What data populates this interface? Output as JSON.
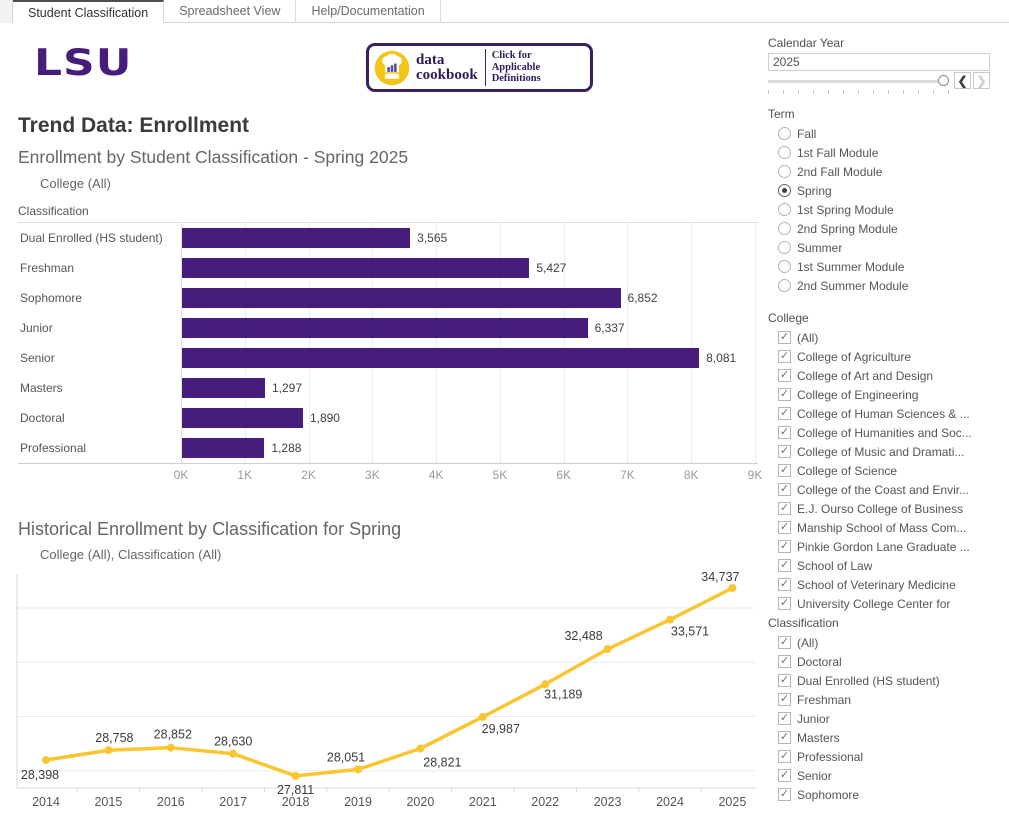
{
  "tabs": [
    {
      "label": "Student Classification",
      "active": true
    },
    {
      "label": "Spreadsheet View",
      "active": false
    },
    {
      "label": "Help/Documentation",
      "active": false
    }
  ],
  "logo": {
    "text": "LSU",
    "color": "#461d7c"
  },
  "cookbook": {
    "line1": "data",
    "line2": "cookbook",
    "caption_line1": "Click for Applicable",
    "caption_line2": "Definitions",
    "border_color": "#3a2060",
    "circle_color": "#f3c517"
  },
  "page_title": "Trend Data: Enrollment",
  "chart_data": [
    {
      "type": "bar",
      "title": "Enrollment by Student Classification - Spring 2025",
      "subtitle": "College (All)",
      "row_header": "Classification",
      "categories": [
        "Dual Enrolled (HS student)",
        "Freshman",
        "Sophomore",
        "Junior",
        "Senior",
        "Masters",
        "Doctoral",
        "Professional"
      ],
      "values": [
        3565,
        5427,
        6852,
        6337,
        8081,
        1297,
        1890,
        1288
      ],
      "value_labels": [
        "3,565",
        "5,427",
        "6,852",
        "6,337",
        "8,081",
        "1,297",
        "1,890",
        "1,288"
      ],
      "xlim": [
        0,
        9000
      ],
      "x_ticks": [
        "0K",
        "1K",
        "2K",
        "3K",
        "4K",
        "5K",
        "6K",
        "7K",
        "8K",
        "9K"
      ],
      "bar_color": "#461d7c",
      "grid": true,
      "legend": "none"
    },
    {
      "type": "line",
      "title": "Historical Enrollment by Classification for Spring",
      "subtitle": "College (All), Classification (All)",
      "x": [
        2014,
        2015,
        2016,
        2017,
        2018,
        2019,
        2020,
        2021,
        2022,
        2023,
        2024,
        2025
      ],
      "values": [
        28398,
        28758,
        28852,
        28630,
        27811,
        28051,
        28821,
        29987,
        31189,
        32488,
        33571,
        34737
      ],
      "value_labels": [
        "28,398",
        "28,758",
        "28,852",
        "28,630",
        "27,811",
        "28,051",
        "28,821",
        "29,987",
        "31,189",
        "32,488",
        "33,571",
        "34,737"
      ],
      "line_color": "#fac531",
      "ylim": [
        27600,
        35300
      ],
      "gridline_values": [
        28000,
        30000,
        32000,
        34000
      ],
      "grid": true,
      "legend": "none"
    }
  ],
  "sidebar": {
    "calendar_year": {
      "label": "Calendar Year",
      "value": "2025"
    },
    "term": {
      "label": "Term",
      "selected": "Spring",
      "options": [
        "Fall",
        "1st Fall Module",
        "2nd Fall Module",
        "Spring",
        "1st Spring Module",
        "2nd Spring Module",
        "Summer",
        "1st Summer Module",
        "2nd Summer Module"
      ]
    },
    "college": {
      "label": "College",
      "all_checked": true,
      "options": [
        "(All)",
        "College of Agriculture",
        "College of Art and Design",
        "College of Engineering",
        "College of Human Sciences & ...",
        "College of Humanities and Soc...",
        "College of Music and Dramati...",
        "College of Science",
        "College of the Coast and Envir...",
        "E.J. Ourso College of Business",
        "Manship School of Mass Com...",
        "Pinkie Gordon Lane Graduate ...",
        "School of Law",
        "School of Veterinary Medicine",
        "University College Center for"
      ]
    },
    "classification": {
      "label": "Classification",
      "all_checked": true,
      "options": [
        "(All)",
        "Doctoral",
        "Dual Enrolled (HS student)",
        "Freshman",
        "Junior",
        "Masters",
        "Professional",
        "Senior",
        "Sophomore"
      ]
    }
  }
}
